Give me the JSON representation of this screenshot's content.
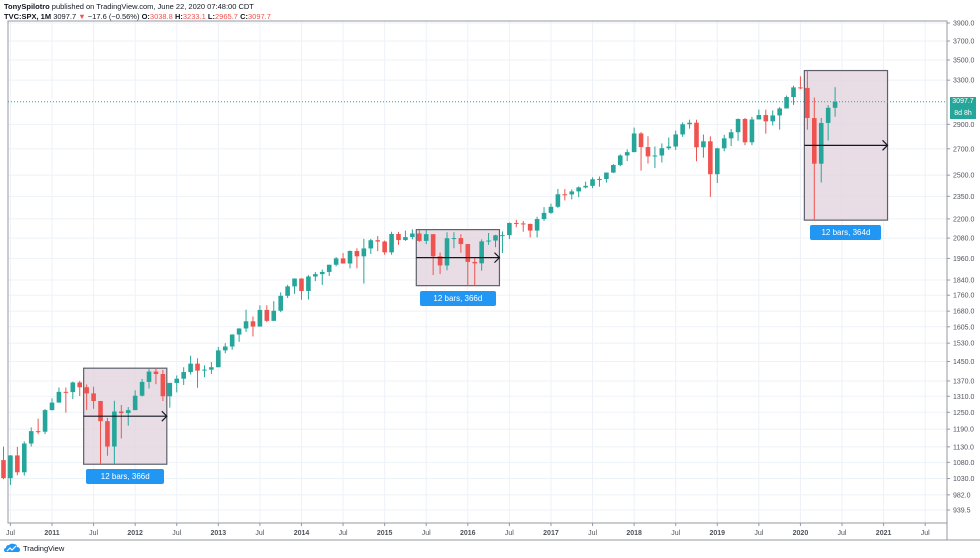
{
  "header": {
    "author": "TonySpilotro",
    "published_text": "published on TradingView.com, June 22, 2020 07:48:00 CDT",
    "symbol": "TVC:SPX, 1M",
    "last": "3097.7",
    "change_icon": "down-triangle-icon",
    "change": "−17.6 (−0.56%)",
    "open_label": "O:",
    "open": "3038.8",
    "high_label": "H:",
    "high": "3233.1",
    "low_label": "L:",
    "low": "2965.7",
    "close_label": "C:",
    "close": "3097.7"
  },
  "price_axis": {
    "current_price": "3097.7",
    "countdown": "8d 8h",
    "current_price_color": "#26a69a"
  },
  "footer": {
    "brand": "TradingView",
    "brand_icon": "tradingview-cloud-icon"
  },
  "colors": {
    "up": "#26a69a",
    "down": "#ef5350",
    "range_fill": "#e1d1dc",
    "range_label_bg": "#2196f3",
    "grid": "#edf2f7"
  },
  "annotations": [
    {
      "label": "12 bars, 366d"
    },
    {
      "label": "12 bars, 366d"
    },
    {
      "label": "12 bars, 364d"
    }
  ],
  "chart_data": {
    "type": "candlestick",
    "title": "TVC:SPX, 1M",
    "xlabel": "",
    "ylabel": "",
    "scale": "log",
    "ylim": [
      920,
      4000
    ],
    "y_ticks": [
      "3900.0",
      "3700.0",
      "3500.0",
      "3300.0",
      "2900.0",
      "2700.0",
      "2500.0",
      "2350.0",
      "2200.0",
      "2080.0",
      "1960.0",
      "1840.0",
      "1760.0",
      "1680.0",
      "1605.0",
      "1530.0",
      "1450.0",
      "1370.0",
      "1310.0",
      "1250.0",
      "1190.0",
      "1130.0",
      "1080.0",
      "1030.0",
      "982.0",
      "939.5"
    ],
    "x_ticks": [
      "Jul",
      "2011",
      "Jul",
      "2012",
      "Jul",
      "2013",
      "Jul",
      "2014",
      "Jul",
      "2015",
      "Jul",
      "2016",
      "Jul",
      "2017",
      "Jul",
      "2018",
      "Jul",
      "2019",
      "Jul",
      "2020",
      "Jul",
      "2021",
      "Jul"
    ],
    "grid": true,
    "current_price": 3097.7,
    "candles_ohlc_monthly_from_2010_06": [
      [
        1087,
        1131,
        1028,
        1031
      ],
      [
        1031,
        1103,
        1011,
        1102
      ],
      [
        1102,
        1130,
        1040,
        1049
      ],
      [
        1049,
        1148,
        1039,
        1141
      ],
      [
        1141,
        1196,
        1131,
        1183
      ],
      [
        1183,
        1227,
        1173,
        1181
      ],
      [
        1181,
        1262,
        1173,
        1258
      ],
      [
        1258,
        1302,
        1257,
        1286
      ],
      [
        1286,
        1344,
        1294,
        1327
      ],
      [
        1327,
        1344,
        1249,
        1326
      ],
      [
        1326,
        1367,
        1299,
        1364
      ],
      [
        1364,
        1370,
        1311,
        1345
      ],
      [
        1345,
        1356,
        1258,
        1321
      ],
      [
        1321,
        1347,
        1263,
        1292
      ],
      [
        1292,
        1292,
        1074,
        1218
      ],
      [
        1218,
        1230,
        1101,
        1131
      ],
      [
        1131,
        1293,
        1075,
        1253
      ],
      [
        1253,
        1277,
        1158,
        1247
      ],
      [
        1247,
        1269,
        1202,
        1258
      ],
      [
        1258,
        1333,
        1258,
        1312
      ],
      [
        1312,
        1378,
        1309,
        1366
      ],
      [
        1366,
        1419,
        1340,
        1408
      ],
      [
        1408,
        1422,
        1357,
        1398
      ],
      [
        1398,
        1415,
        1292,
        1310
      ],
      [
        1310,
        1363,
        1267,
        1362
      ],
      [
        1362,
        1392,
        1325,
        1379
      ],
      [
        1379,
        1426,
        1354,
        1406
      ],
      [
        1406,
        1475,
        1396,
        1441
      ],
      [
        1441,
        1464,
        1343,
        1412
      ],
      [
        1412,
        1434,
        1385,
        1416
      ],
      [
        1416,
        1448,
        1398,
        1426
      ],
      [
        1426,
        1513,
        1426,
        1498
      ],
      [
        1498,
        1530,
        1485,
        1515
      ],
      [
        1515,
        1570,
        1501,
        1569
      ],
      [
        1569,
        1598,
        1536,
        1597
      ],
      [
        1597,
        1687,
        1581,
        1631
      ],
      [
        1631,
        1654,
        1560,
        1606
      ],
      [
        1606,
        1709,
        1606,
        1686
      ],
      [
        1686,
        1709,
        1627,
        1633
      ],
      [
        1633,
        1730,
        1633,
        1682
      ],
      [
        1682,
        1775,
        1675,
        1757
      ],
      [
        1757,
        1814,
        1746,
        1806
      ],
      [
        1806,
        1849,
        1767,
        1848
      ],
      [
        1848,
        1850,
        1737,
        1782
      ],
      [
        1782,
        1867,
        1738,
        1859
      ],
      [
        1859,
        1884,
        1834,
        1872
      ],
      [
        1872,
        1897,
        1814,
        1884
      ],
      [
        1884,
        1924,
        1862,
        1924
      ],
      [
        1924,
        1968,
        1915,
        1960
      ],
      [
        1960,
        1991,
        1930,
        1931
      ],
      [
        1931,
        2006,
        1904,
        2003
      ],
      [
        2003,
        2019,
        1904,
        1972
      ],
      [
        1972,
        2075,
        1821,
        2018
      ],
      [
        2018,
        2075,
        1986,
        2067
      ],
      [
        2067,
        2093,
        2002,
        2059
      ],
      [
        2059,
        2065,
        1981,
        1995
      ],
      [
        1995,
        2119,
        1981,
        2105
      ],
      [
        2105,
        2117,
        2039,
        2068
      ],
      [
        2068,
        2126,
        2063,
        2086
      ],
      [
        2086,
        2134,
        2072,
        2108
      ],
      [
        2108,
        2127,
        2057,
        2063
      ],
      [
        2063,
        2132,
        2044,
        2104
      ],
      [
        2104,
        2104,
        1867,
        1972
      ],
      [
        1972,
        1994,
        1872,
        1920
      ],
      [
        1920,
        2116,
        1893,
        2079
      ],
      [
        2079,
        2116,
        2019,
        2080
      ],
      [
        2080,
        2104,
        1993,
        2044
      ],
      [
        2044,
        2000,
        1812,
        1940
      ],
      [
        1940,
        1963,
        1810,
        1932
      ],
      [
        1932,
        2072,
        1891,
        2060
      ],
      [
        2060,
        2111,
        2039,
        2065
      ],
      [
        2065,
        2100,
        2025,
        2097
      ],
      [
        2097,
        2121,
        1991,
        2098
      ],
      [
        2098,
        2177,
        2074,
        2174
      ],
      [
        2174,
        2194,
        2147,
        2171
      ],
      [
        2171,
        2187,
        2119,
        2168
      ],
      [
        2168,
        2169,
        2084,
        2126
      ],
      [
        2126,
        2214,
        2084,
        2199
      ],
      [
        2199,
        2277,
        2187,
        2239
      ],
      [
        2239,
        2300,
        2233,
        2279
      ],
      [
        2279,
        2401,
        2272,
        2364
      ],
      [
        2364,
        2400,
        2322,
        2363
      ],
      [
        2363,
        2398,
        2329,
        2384
      ],
      [
        2384,
        2419,
        2344,
        2412
      ],
      [
        2412,
        2453,
        2405,
        2423
      ],
      [
        2423,
        2484,
        2407,
        2470
      ],
      [
        2470,
        2490,
        2417,
        2472
      ],
      [
        2472,
        2519,
        2446,
        2519
      ],
      [
        2519,
        2582,
        2515,
        2575
      ],
      [
        2575,
        2657,
        2566,
        2648
      ],
      [
        2648,
        2695,
        2605,
        2674
      ],
      [
        2674,
        2873,
        2674,
        2824
      ],
      [
        2824,
        2835,
        2533,
        2714
      ],
      [
        2714,
        2801,
        2586,
        2641
      ],
      [
        2641,
        2718,
        2553,
        2648
      ],
      [
        2648,
        2743,
        2594,
        2705
      ],
      [
        2705,
        2791,
        2691,
        2718
      ],
      [
        2718,
        2848,
        2691,
        2816
      ],
      [
        2816,
        2917,
        2796,
        2901
      ],
      [
        2901,
        2940,
        2864,
        2914
      ],
      [
        2914,
        2940,
        2603,
        2712
      ],
      [
        2712,
        2815,
        2631,
        2760
      ],
      [
        2760,
        2800,
        2346,
        2507
      ],
      [
        2507,
        2708,
        2443,
        2704
      ],
      [
        2704,
        2813,
        2681,
        2784
      ],
      [
        2784,
        2861,
        2722,
        2834
      ],
      [
        2834,
        2950,
        2764,
        2946
      ],
      [
        2946,
        2954,
        2728,
        2752
      ],
      [
        2752,
        2964,
        2729,
        2942
      ],
      [
        2942,
        3028,
        2952,
        2980
      ],
      [
        2980,
        3028,
        2822,
        2926
      ],
      [
        2926,
        3021,
        2891,
        2977
      ],
      [
        2977,
        3050,
        2855,
        3038
      ],
      [
        3038,
        3155,
        3050,
        3141
      ],
      [
        3141,
        3247,
        3070,
        3231
      ],
      [
        3231,
        3337,
        3214,
        3226
      ],
      [
        3226,
        3394,
        2855,
        2954
      ],
      [
        2954,
        3137,
        2192,
        2585
      ],
      [
        2585,
        2955,
        2447,
        2912
      ],
      [
        2912,
        3068,
        2767,
        3044
      ],
      [
        3044,
        3233,
        2966,
        3098
      ]
    ],
    "ranges": [
      {
        "label": "12 bars, 366d",
        "start": "2011-06",
        "end": "2012-06"
      },
      {
        "label": "12 bars, 366d",
        "start": "2015-06",
        "end": "2016-06"
      },
      {
        "label": "12 bars, 364d",
        "start": "2020-02",
        "end": "2021-02"
      }
    ]
  }
}
